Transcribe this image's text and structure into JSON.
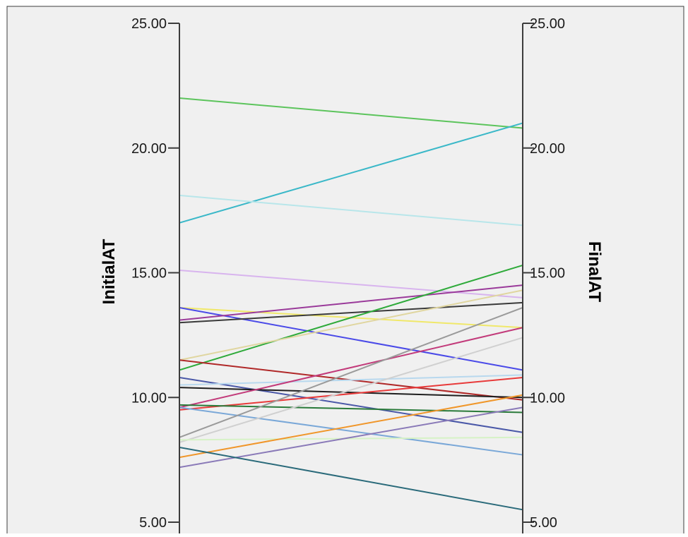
{
  "chart_data": {
    "type": "line",
    "title": "",
    "left_axis": {
      "label": "InitialAT",
      "min": 5,
      "max": 25,
      "ticks": [
        "5.00",
        "10.00",
        "15.00",
        "20.00",
        "25.00"
      ],
      "tick_values": [
        5,
        10,
        15,
        20,
        25
      ]
    },
    "right_axis": {
      "label": "FinalAT",
      "min": 5,
      "max": 25,
      "ticks": [
        "5.00",
        "10.00",
        "15.00",
        "20.00",
        "25.00"
      ],
      "tick_values": [
        5,
        10,
        15,
        20,
        25
      ]
    },
    "grid": false,
    "legend": "none",
    "series": [
      {
        "initial": 22.0,
        "final": 20.8,
        "color": "#5cc45c"
      },
      {
        "initial": 17.0,
        "final": 21.0,
        "color": "#3ab8c8"
      },
      {
        "initial": 18.1,
        "final": 16.9,
        "color": "#b8e6ea"
      },
      {
        "initial": 15.1,
        "final": 14.0,
        "color": "#d8b4ee"
      },
      {
        "initial": 13.6,
        "final": 12.8,
        "color": "#f0e86a"
      },
      {
        "initial": 13.6,
        "final": 11.1,
        "color": "#4a4ae8"
      },
      {
        "initial": 13.1,
        "final": 14.5,
        "color": "#9a3a9a"
      },
      {
        "initial": 13.0,
        "final": 13.8,
        "color": "#3a3a3a"
      },
      {
        "initial": 11.1,
        "final": 15.3,
        "color": "#2eaa3a"
      },
      {
        "initial": 11.5,
        "final": 14.3,
        "color": "#e0d6a0"
      },
      {
        "initial": 11.5,
        "final": 9.9,
        "color": "#b02828"
      },
      {
        "initial": 10.8,
        "final": 8.6,
        "color": "#4a58a8"
      },
      {
        "initial": 10.4,
        "final": 10.0,
        "color": "#1e1e1e"
      },
      {
        "initial": 10.5,
        "final": 10.9,
        "color": "#b8d8ee"
      },
      {
        "initial": 9.5,
        "final": 10.8,
        "color": "#e83a3a"
      },
      {
        "initial": 9.6,
        "final": 12.8,
        "color": "#c23a7a"
      },
      {
        "initial": 9.7,
        "final": 9.4,
        "color": "#2a7a3a"
      },
      {
        "initial": 9.6,
        "final": 7.7,
        "color": "#7aa8d8"
      },
      {
        "initial": 8.4,
        "final": 13.6,
        "color": "#9a9a9a"
      },
      {
        "initial": 8.2,
        "final": 12.4,
        "color": "#d0d0d0"
      },
      {
        "initial": 8.3,
        "final": 8.4,
        "color": "#d6f2c6"
      },
      {
        "initial": 7.6,
        "final": 10.1,
        "color": "#f0962a"
      },
      {
        "initial": 7.2,
        "final": 9.6,
        "color": "#8a7ab8"
      },
      {
        "initial": 8.0,
        "final": 5.5,
        "color": "#2a6a7a"
      }
    ]
  }
}
